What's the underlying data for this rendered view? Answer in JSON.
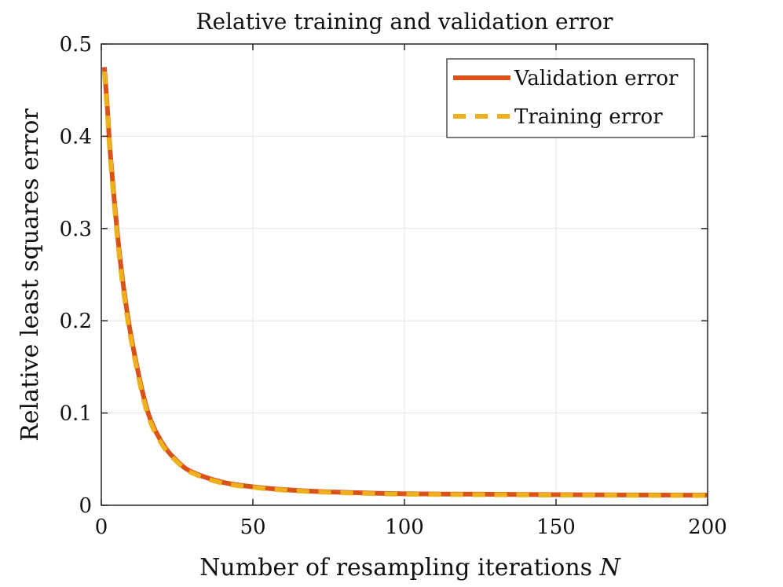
{
  "chart_data": {
    "type": "line",
    "title": "Relative training and validation error",
    "xlabel": "Number of resampling iterations ",
    "xlabel_var": "N",
    "ylabel": "Relative least squares error",
    "xlim": [
      0,
      200
    ],
    "ylim": [
      0,
      0.5
    ],
    "xticks": [
      0,
      50,
      100,
      150,
      200
    ],
    "yticks": [
      0,
      0.1,
      0.2,
      0.3,
      0.4,
      0.5
    ],
    "xtick_labels": [
      "0",
      "50",
      "100",
      "150",
      "200"
    ],
    "ytick_labels": [
      "0",
      "0.1",
      "0.2",
      "0.3",
      "0.4",
      "0.5"
    ],
    "grid": true,
    "legend_position": "top-right",
    "x": [
      1,
      2,
      3,
      5,
      7,
      10,
      15,
      20,
      25,
      30,
      40,
      50,
      60,
      75,
      100,
      125,
      150,
      175,
      200
    ],
    "series": [
      {
        "name": "Validation error",
        "color": "#D95319",
        "style": "solid",
        "values": [
          0.475,
          0.43,
          0.38,
          0.305,
          0.245,
          0.18,
          0.105,
          0.068,
          0.048,
          0.036,
          0.025,
          0.02,
          0.017,
          0.0145,
          0.0125,
          0.012,
          0.0115,
          0.0112,
          0.011
        ]
      },
      {
        "name": "Training error",
        "color": "#EDB120",
        "style": "dashed",
        "values": [
          0.47,
          0.425,
          0.375,
          0.3,
          0.24,
          0.176,
          0.102,
          0.066,
          0.047,
          0.035,
          0.024,
          0.0195,
          0.0165,
          0.014,
          0.012,
          0.0115,
          0.011,
          0.0108,
          0.0105
        ]
      }
    ]
  }
}
